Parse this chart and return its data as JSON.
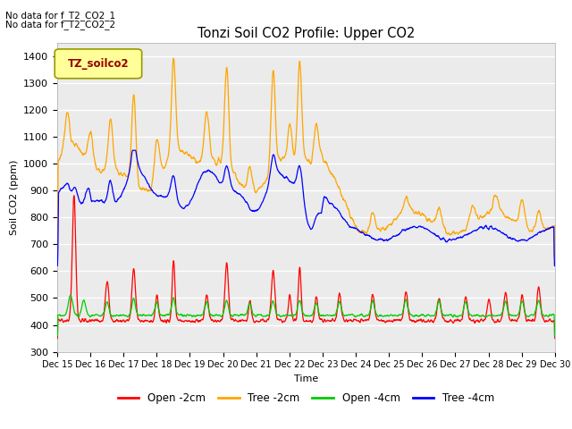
{
  "title": "Tonzi Soil CO2 Profile: Upper CO2",
  "xlabel": "Time",
  "ylabel": "Soil CO2 (ppm)",
  "ylim": [
    300,
    1450
  ],
  "yticks": [
    300,
    400,
    500,
    600,
    700,
    800,
    900,
    1000,
    1100,
    1200,
    1300,
    1400
  ],
  "legend_labels": [
    "Open -2cm",
    "Tree -2cm",
    "Open -4cm",
    "Tree -4cm"
  ],
  "legend_colors": [
    "#ff0000",
    "#ffa500",
    "#00cc00",
    "#0000ff"
  ],
  "no_data_text_1": "No data for f_T2_CO2_1",
  "no_data_text_2": "No data for f_T2_CO2_2",
  "legend_box_label": "TZ_soilco2",
  "legend_box_color": "#ffff99",
  "legend_box_text_color": "#990000",
  "legend_box_edge_color": "#999900",
  "xtick_labels": [
    "Dec 15",
    "Dec 16",
    "Dec 17",
    "Dec 18",
    "Dec 19",
    "Dec 20",
    "Dec 21",
    "Dec 22",
    "Dec 23",
    "Dec 24",
    "Dec 25",
    "Dec 26",
    "Dec 27",
    "Dec 28",
    "Dec 29",
    "Dec 30"
  ],
  "plot_bg_color": "#ebebeb",
  "fig_bg_color": "#ffffff"
}
